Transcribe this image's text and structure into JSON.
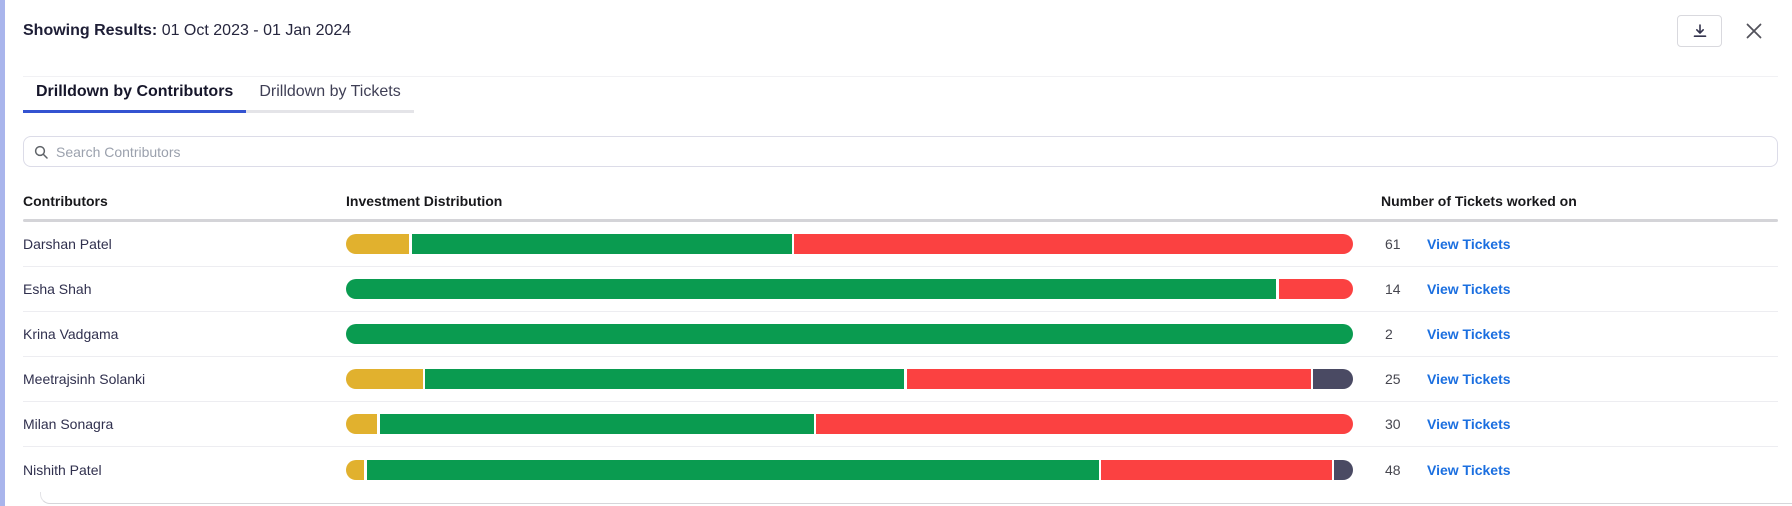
{
  "header": {
    "results_label": "Showing Results:",
    "results_value": "01 Oct 2023 - 01 Jan 2024"
  },
  "tabs": [
    {
      "label": "Drilldown by Contributors",
      "active": true
    },
    {
      "label": "Drilldown by Tickets",
      "active": false
    }
  ],
  "search": {
    "placeholder": "Search Contributors",
    "value": ""
  },
  "table": {
    "columns": [
      "Contributors",
      "Investment Distribution",
      "Number of Tickets worked on"
    ],
    "link_label": "View Tickets",
    "rows": [
      {
        "name": "Darshan Patel",
        "tickets": "61",
        "segments": [
          {
            "color": "yellow",
            "pct": 6.3
          },
          {
            "color": "green",
            "pct": 37.7
          },
          {
            "color": "red",
            "pct": 56.0
          }
        ]
      },
      {
        "name": "Esha Shah",
        "tickets": "14",
        "segments": [
          {
            "color": "green",
            "pct": 92.4
          },
          {
            "color": "red",
            "pct": 7.6
          }
        ]
      },
      {
        "name": "Krina Vadgama",
        "tickets": "2",
        "segments": [
          {
            "color": "green",
            "pct": 100
          }
        ]
      },
      {
        "name": "Meetrajsinh Solanki",
        "tickets": "25",
        "segments": [
          {
            "color": "yellow",
            "pct": 7.6
          },
          {
            "color": "green",
            "pct": 47.6
          },
          {
            "color": "red",
            "pct": 40.1
          },
          {
            "color": "slate",
            "pct": 4.7
          }
        ]
      },
      {
        "name": "Milan Sonagra",
        "tickets": "30",
        "segments": [
          {
            "color": "yellow",
            "pct": 3.1
          },
          {
            "color": "green",
            "pct": 43.1
          },
          {
            "color": "red",
            "pct": 53.8
          }
        ]
      },
      {
        "name": "Nishith Patel",
        "tickets": "48",
        "segments": [
          {
            "color": "yellow",
            "pct": 1.8
          },
          {
            "color": "green",
            "pct": 72.7
          },
          {
            "color": "red",
            "pct": 22.9
          },
          {
            "color": "slate",
            "pct": 2.6
          }
        ]
      }
    ]
  },
  "colors": {
    "yellow": "#E1B12E",
    "green": "#0A9B50",
    "red": "#FB4141",
    "slate": "#4A4A63",
    "accent": "#3453D1",
    "link": "#1B6FE0"
  }
}
